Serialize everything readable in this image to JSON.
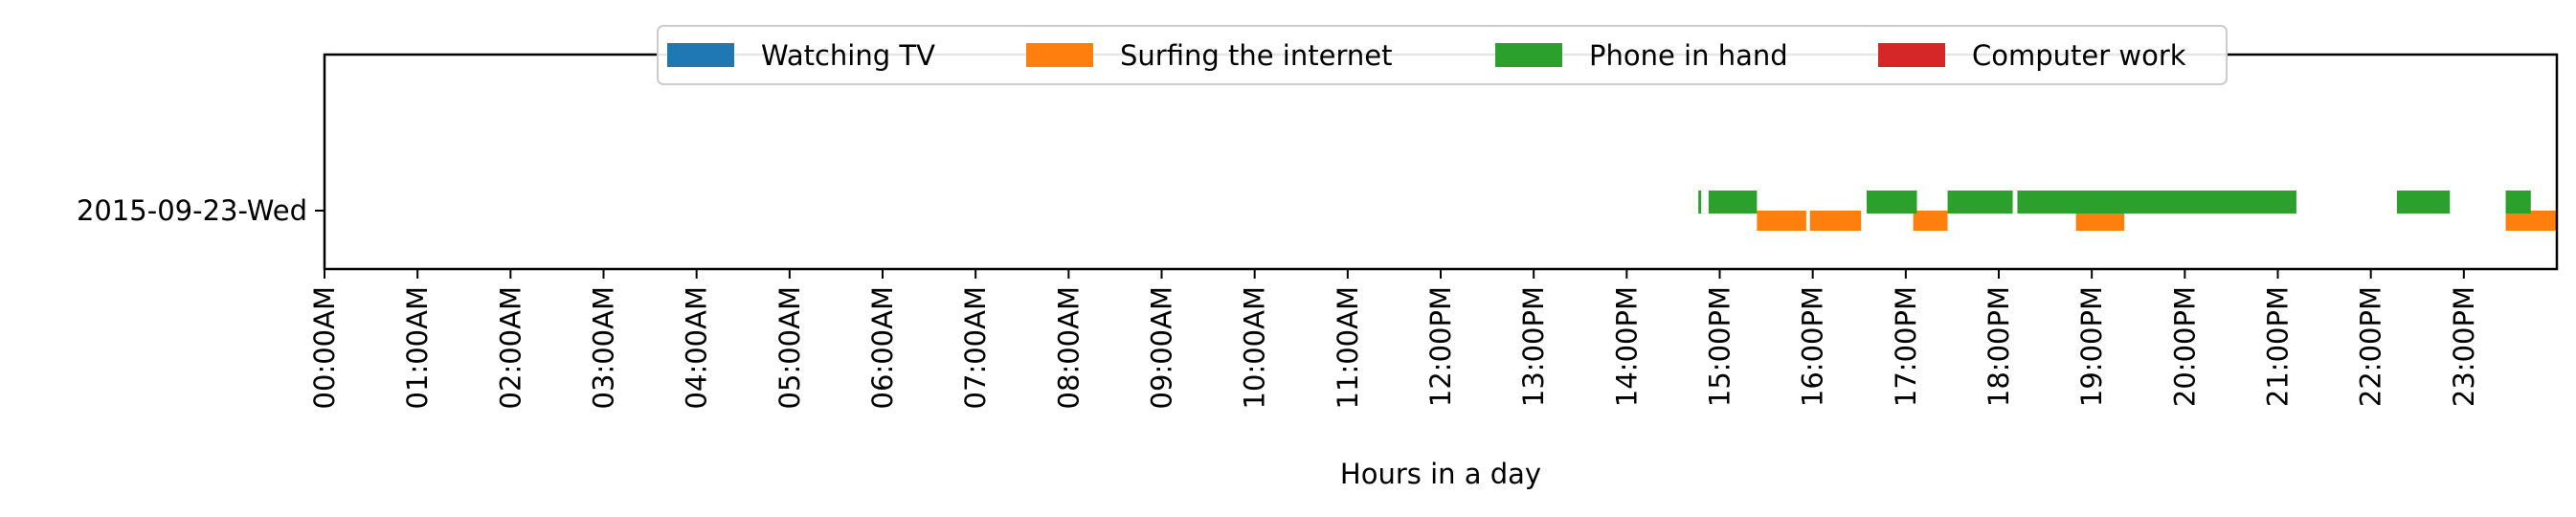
{
  "chart_data": {
    "type": "timeline",
    "title": "",
    "xlabel": "Hours in a day",
    "ylabel": "",
    "xlim": [
      0,
      24
    ],
    "x_tick_labels": [
      "00:00AM",
      "01:00AM",
      "02:00AM",
      "03:00AM",
      "04:00AM",
      "05:00AM",
      "06:00AM",
      "07:00AM",
      "08:00AM",
      "09:00AM",
      "10:00AM",
      "11:00AM",
      "12:00PM",
      "13:00PM",
      "14:00PM",
      "15:00PM",
      "16:00PM",
      "17:00PM",
      "18:00PM",
      "19:00PM",
      "20:00PM",
      "21:00PM",
      "22:00PM",
      "23:00PM"
    ],
    "categories": [
      "2015-09-23-Wed"
    ],
    "grid": false,
    "legend_position": "top-center",
    "series": [
      {
        "name": "Watching TV",
        "color": "#1f77b4",
        "intervals": []
      },
      {
        "name": "Surfing the internet",
        "color": "#ff7f0e",
        "intervals": [
          [
            15.4,
            15.93
          ],
          [
            15.97,
            16.52
          ],
          [
            17.08,
            17.45
          ],
          [
            18.83,
            19.35
          ],
          [
            23.45,
            24.0
          ]
        ]
      },
      {
        "name": "Phone in hand",
        "color": "#2ca02c",
        "intervals": [
          [
            14.77,
            14.8
          ],
          [
            14.88,
            15.4
          ],
          [
            16.58,
            17.12
          ],
          [
            17.45,
            18.15
          ],
          [
            18.2,
            21.2
          ],
          [
            22.28,
            22.85
          ],
          [
            23.45,
            23.72
          ]
        ]
      },
      {
        "name": "Computer work",
        "color": "#d62728",
        "intervals": []
      }
    ]
  }
}
